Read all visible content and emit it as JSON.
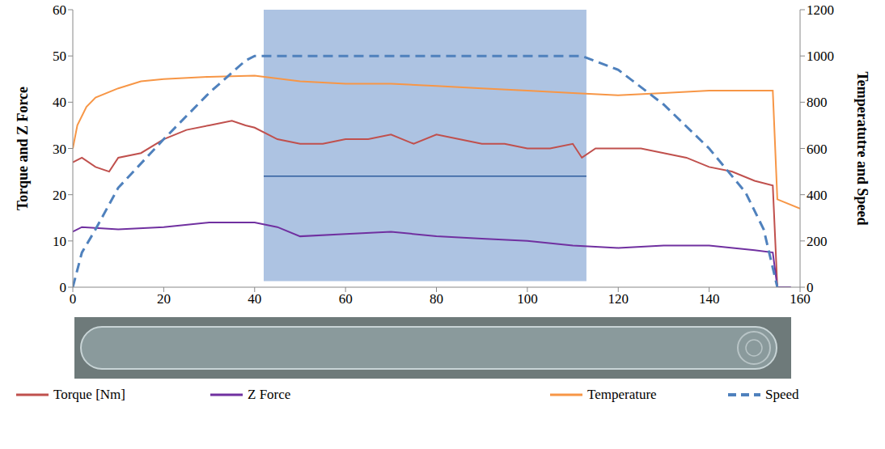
{
  "chart_data": {
    "type": "line",
    "y_label": "Torque and Z Force",
    "y2_label": "Temperatutre and Speed",
    "xlim": [
      0,
      160
    ],
    "xticks": [
      0,
      20,
      40,
      60,
      80,
      100,
      120,
      140,
      160
    ],
    "ylim": [
      0,
      60
    ],
    "yticks": [
      0,
      10,
      20,
      30,
      40,
      50,
      60
    ],
    "y2lim": [
      0,
      1200
    ],
    "y2ticks": [
      0,
      200,
      400,
      600,
      800,
      1000,
      1200
    ],
    "grid": false,
    "legend": "bottom",
    "highlight_x": [
      42,
      113
    ],
    "series": [
      {
        "name": "Torque  [Nm]",
        "color": "#c0504d",
        "line_style": "solid",
        "x": [
          0,
          2,
          5,
          8,
          10,
          15,
          20,
          25,
          30,
          35,
          38,
          40,
          45,
          50,
          55,
          60,
          65,
          70,
          75,
          80,
          85,
          90,
          95,
          100,
          105,
          110,
          112,
          115,
          120,
          125,
          130,
          135,
          140,
          145,
          150,
          154,
          155
        ],
        "values": [
          27,
          28,
          26,
          25,
          28,
          29,
          32,
          34,
          35,
          36,
          35,
          34.5,
          32,
          31,
          31,
          32,
          32,
          33,
          31,
          33,
          32,
          31,
          31,
          30,
          30,
          31,
          28,
          30,
          30,
          30,
          29,
          28,
          26,
          25,
          23,
          22,
          0
        ]
      },
      {
        "name": "Z Force",
        "color": "#7030a0",
        "line_style": "solid",
        "x": [
          0,
          2,
          10,
          20,
          30,
          40,
          45,
          50,
          60,
          70,
          80,
          90,
          100,
          110,
          120,
          130,
          140,
          150,
          154,
          155,
          158
        ],
        "values": [
          12,
          13,
          12.5,
          13,
          14,
          14,
          13,
          11,
          11.5,
          12,
          11,
          10.5,
          10,
          9,
          8.5,
          9,
          9,
          8,
          7.5,
          0,
          0
        ]
      },
      {
        "name": "Temperature",
        "color": "#f79646",
        "line_style": "solid",
        "axis": "y2",
        "x": [
          0,
          1,
          3,
          5,
          10,
          15,
          20,
          30,
          40,
          50,
          60,
          70,
          80,
          90,
          100,
          110,
          120,
          130,
          140,
          150,
          154,
          155,
          160
        ],
        "values": [
          600,
          700,
          780,
          820,
          860,
          890,
          900,
          910,
          915,
          890,
          880,
          880,
          870,
          860,
          850,
          840,
          830,
          840,
          850,
          850,
          850,
          380,
          340
        ]
      },
      {
        "name": "Speed",
        "color": "#4f81bd",
        "line_style": "dashed",
        "axis": "y2",
        "x": [
          0,
          2,
          5,
          10,
          20,
          30,
          38,
          40,
          112,
          120,
          130,
          140,
          148,
          152,
          155
        ],
        "values": [
          0,
          150,
          250,
          430,
          640,
          840,
          980,
          1000,
          1000,
          940,
          790,
          600,
          410,
          250,
          0
        ]
      }
    ]
  }
}
